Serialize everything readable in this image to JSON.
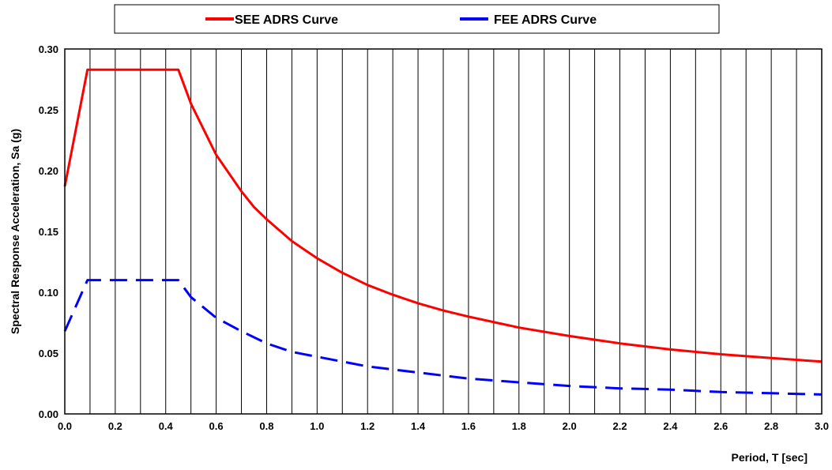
{
  "chart_data": {
    "type": "line",
    "title": "",
    "xlabel": "Period, T [sec]",
    "ylabel": "Spectral Response Acceleration, Sa (g)",
    "xlim": [
      0,
      3.0
    ],
    "ylim": [
      0,
      0.3
    ],
    "xticks": [
      "0.0",
      "0.2",
      "0.4",
      "0.6",
      "0.8",
      "1.0",
      "1.2",
      "1.4",
      "1.6",
      "1.8",
      "2.0",
      "2.2",
      "2.4",
      "2.6",
      "2.8",
      "3.0"
    ],
    "yticks": [
      "0.00",
      "0.05",
      "0.10",
      "0.15",
      "0.20",
      "0.25",
      "0.30"
    ],
    "vertical_grid": true,
    "horizontal_grid": false,
    "vertical_grid_step": 0.1,
    "legend_position": "top",
    "series": [
      {
        "name": "SEE ADRS Curve",
        "color": "#ff0000",
        "dash": "solid",
        "x": [
          0.0,
          0.09,
          0.2,
          0.3,
          0.45,
          0.5,
          0.6,
          0.7,
          0.75,
          0.8,
          0.9,
          1.0,
          1.1,
          1.2,
          1.3,
          1.4,
          1.5,
          1.6,
          1.8,
          2.0,
          2.2,
          2.4,
          2.6,
          2.8,
          3.0
        ],
        "y": [
          0.187,
          0.283,
          0.283,
          0.283,
          0.283,
          0.255,
          0.213,
          0.183,
          0.17,
          0.16,
          0.142,
          0.128,
          0.116,
          0.106,
          0.098,
          0.091,
          0.085,
          0.08,
          0.071,
          0.064,
          0.058,
          0.053,
          0.049,
          0.046,
          0.043
        ]
      },
      {
        "name": "FEE ADRS Curve",
        "color": "#0000ff",
        "dash": "dashed",
        "x": [
          0.0,
          0.09,
          0.2,
          0.3,
          0.45,
          0.5,
          0.6,
          0.7,
          0.8,
          0.9,
          1.0,
          1.2,
          1.4,
          1.6,
          1.8,
          2.0,
          2.2,
          2.4,
          2.6,
          2.8,
          3.0
        ],
        "y": [
          0.068,
          0.11,
          0.11,
          0.11,
          0.11,
          0.096,
          0.079,
          0.068,
          0.058,
          0.051,
          0.047,
          0.039,
          0.034,
          0.029,
          0.026,
          0.023,
          0.021,
          0.02,
          0.018,
          0.017,
          0.016
        ]
      }
    ]
  }
}
